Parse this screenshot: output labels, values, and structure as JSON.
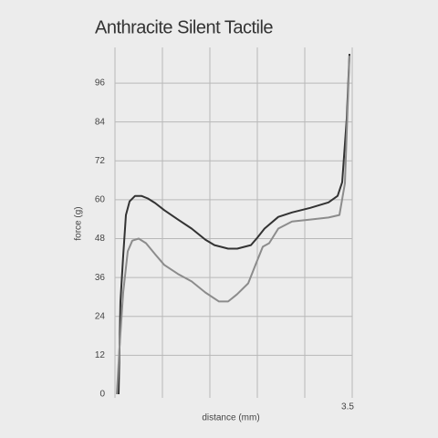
{
  "chart_data": {
    "type": "line",
    "title": "Anthracite Silent Tactile",
    "x_label": "distance (mm)",
    "y_label": "force (g)",
    "xlim": [
      0,
      3.5
    ],
    "ylim": [
      0,
      107
    ],
    "xticks": [
      3.5
    ],
    "x_grid": [
      0.7,
      1.4,
      2.1,
      2.8
    ],
    "yticks": [
      0,
      12,
      24,
      36,
      48,
      60,
      72,
      84,
      96
    ],
    "grid": true,
    "series": [
      {
        "color": "#333333",
        "x": [
          0.054,
          0.081,
          0.121,
          0.162,
          0.215,
          0.296,
          0.39,
          0.485,
          0.592,
          0.727,
          0.929,
          1.131,
          1.333,
          1.467,
          1.669,
          1.804,
          2.006,
          2.1,
          2.207,
          2.41,
          2.611,
          2.881,
          3.15,
          3.284,
          3.352,
          3.419,
          3.46
        ],
        "values": [
          0,
          28.6,
          42.7,
          55.3,
          59.5,
          61.2,
          61.2,
          60.4,
          59.0,
          56.8,
          53.9,
          51.1,
          47.7,
          46.0,
          44.9,
          44.9,
          46.0,
          48.3,
          51.1,
          54.7,
          56.1,
          57.5,
          59.2,
          61.2,
          65.4,
          85.1,
          105
        ]
      },
      {
        "color": "#8c8c8c",
        "x": [
          0.027,
          0.067,
          0.121,
          0.188,
          0.256,
          0.35,
          0.458,
          0.592,
          0.727,
          0.929,
          1.131,
          1.333,
          1.535,
          1.669,
          1.804,
          1.965,
          2.073,
          2.181,
          2.275,
          2.41,
          2.611,
          2.881,
          3.15,
          3.311,
          3.392,
          3.46
        ],
        "values": [
          0,
          14.6,
          31.4,
          44.1,
          47.4,
          48.0,
          46.6,
          43.2,
          39.9,
          37.1,
          34.8,
          31.4,
          28.6,
          28.6,
          30.9,
          34.2,
          39.9,
          45.5,
          46.6,
          51.1,
          53.3,
          53.9,
          54.5,
          55.3,
          65.1,
          104.4
        ]
      }
    ]
  }
}
